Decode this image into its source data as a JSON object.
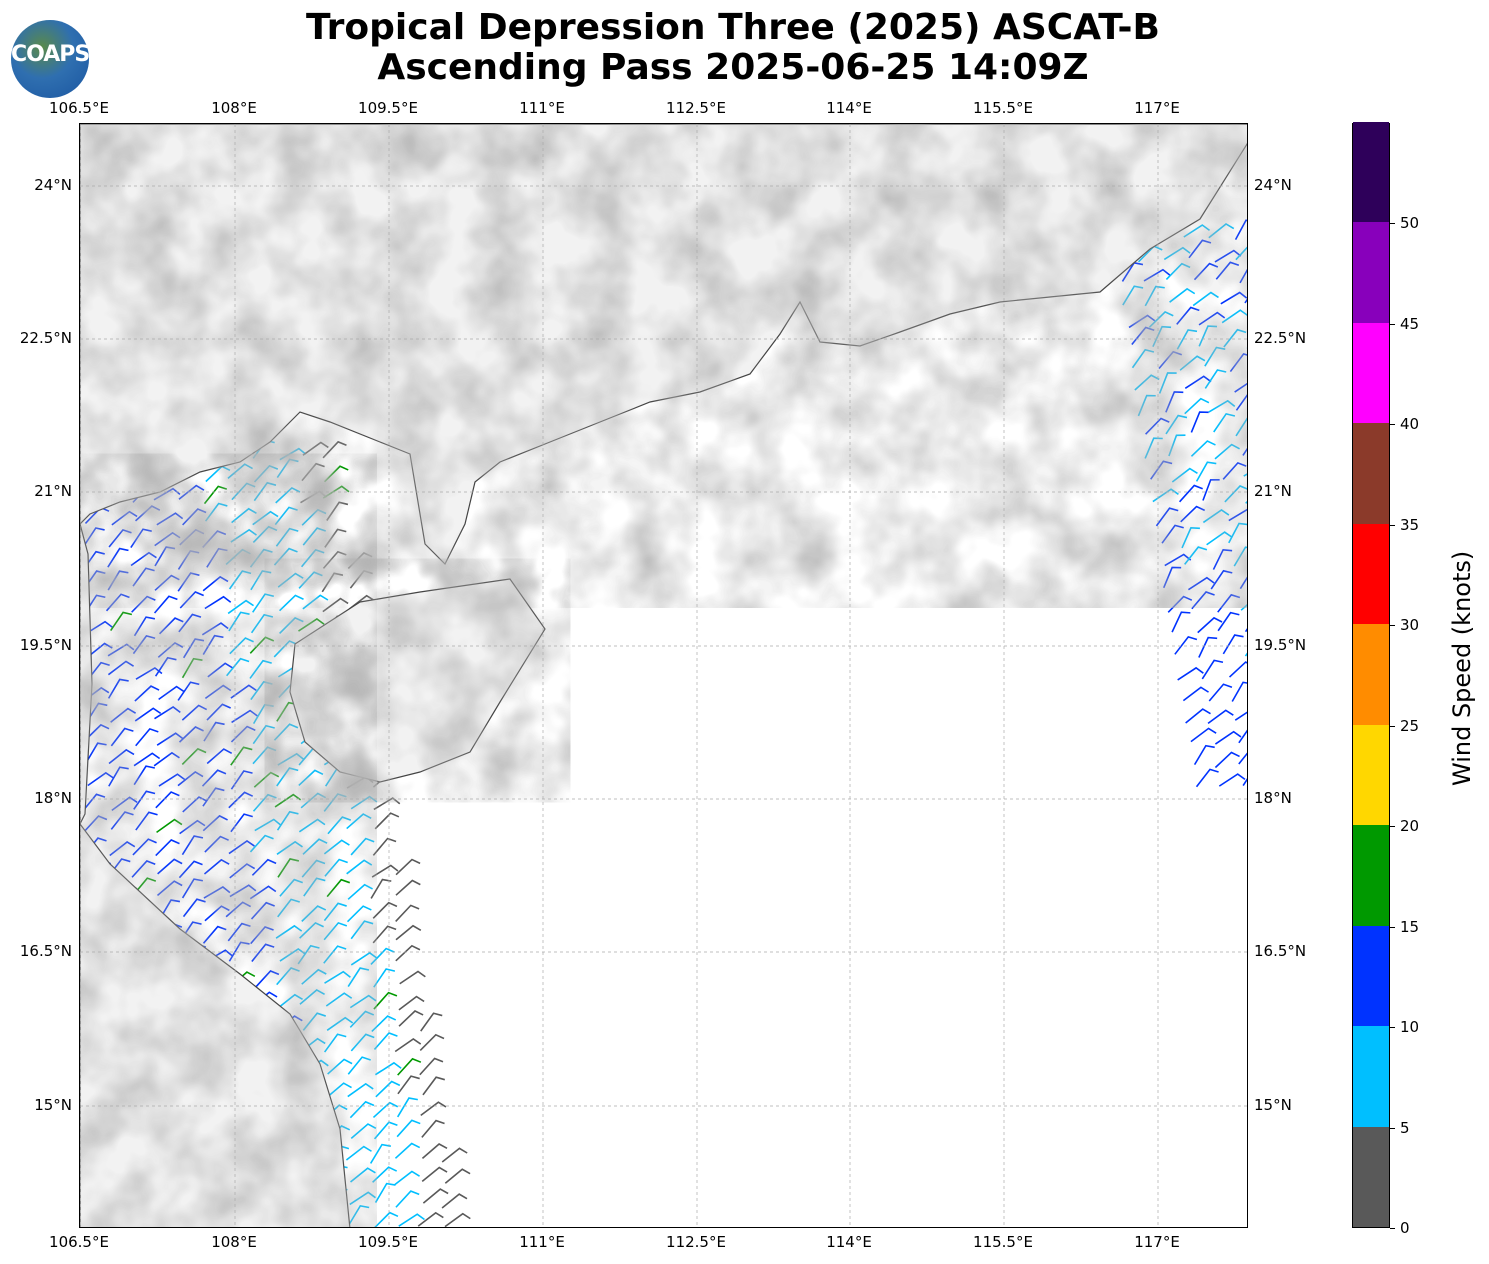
{
  "title": {
    "line1": "Tropical Depression Three (2025) ASCAT-B",
    "line2": "Ascending Pass 2025-06-25 14:09Z"
  },
  "logo": {
    "text": "COAPS"
  },
  "axes": {
    "lon_ticks": [
      "106.5°E",
      "108°E",
      "109.5°E",
      "111°E",
      "112.5°E",
      "114°E",
      "115.5°E",
      "117°E"
    ],
    "lat_ticks": [
      "24°N",
      "22.5°N",
      "21°N",
      "19.5°N",
      "18°N",
      "16.5°N",
      "15°N"
    ],
    "lon_range": [
      106.5,
      117.9
    ],
    "lat_range": [
      13.8,
      24.6
    ]
  },
  "colorbar": {
    "label": "Wind Speed (knots)",
    "ticks": [
      "0",
      "5",
      "10",
      "15",
      "20",
      "25",
      "30",
      "35",
      "40",
      "45",
      "50"
    ],
    "colors": [
      "#595959",
      "#00bfff",
      "#0033ff",
      "#009900",
      "#ffd700",
      "#ff8c00",
      "#ff0000",
      "#8b3a2a",
      "#ff00ff",
      "#8800bb",
      "#2e005a"
    ]
  }
}
